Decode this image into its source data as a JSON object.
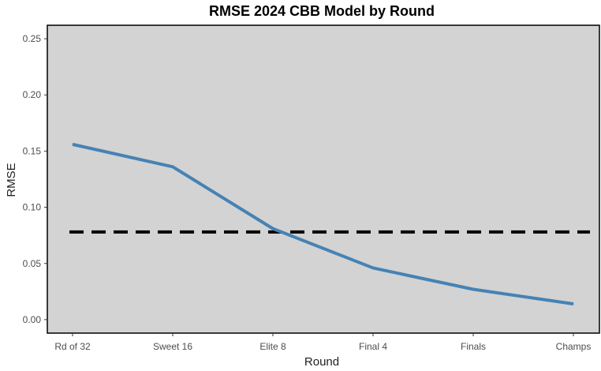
{
  "chart_data": {
    "type": "line",
    "title": "RMSE 2024 CBB Model by Round",
    "xlabel": "Round",
    "ylabel": "RMSE",
    "categories": [
      "Rd of 32",
      "Sweet 16",
      "Elite 8",
      "Final 4",
      "Finals",
      "Champs"
    ],
    "series": [
      {
        "values": [
          0.156,
          0.136,
          0.081,
          0.046,
          0.027,
          0.014
        ],
        "color": "#4682B4"
      }
    ],
    "reference_line": {
      "y": 0.078,
      "style": "dashed",
      "color": "#000000"
    },
    "ylim": [
      -0.012,
      0.262
    ],
    "yticks": [
      "0.00",
      "0.05",
      "0.10",
      "0.15",
      "0.20",
      "0.25"
    ],
    "grid": false,
    "panel_background": "#D3D3D3"
  }
}
